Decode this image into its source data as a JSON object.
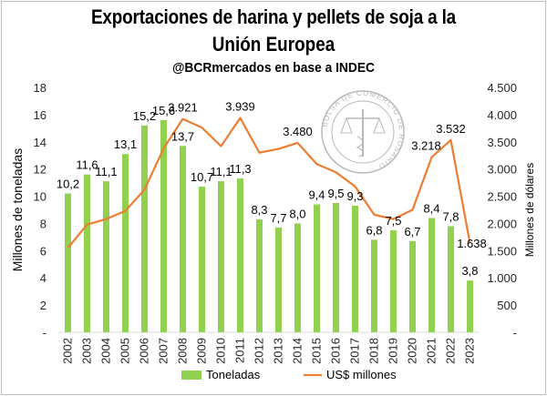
{
  "title_line1": "Exportaciones de harina y pellets de soja a la",
  "title_line2": "Unión Europea",
  "subtitle": "@BCRmercados en base a INDEC",
  "watermark": "BOLSA DE COMERCIO DE ROSARIO",
  "chart_data": {
    "type": "bar+line",
    "categories": [
      "2002",
      "2003",
      "2004",
      "2005",
      "2006",
      "2007",
      "2008",
      "2009",
      "2010",
      "2011",
      "2012",
      "2013",
      "2014",
      "2015",
      "2016",
      "2017",
      "2018",
      "2019",
      "2020",
      "2021",
      "2022",
      "2023"
    ],
    "series": [
      {
        "name": "Toneladas",
        "type": "bar",
        "axis": "left",
        "color": "#92d050",
        "values": [
          10.2,
          11.6,
          11.1,
          13.1,
          15.2,
          15.6,
          13.7,
          10.7,
          11.1,
          11.3,
          8.3,
          7.7,
          8.0,
          9.4,
          9.5,
          9.3,
          6.8,
          7.5,
          6.7,
          8.4,
          7.8,
          3.8
        ],
        "labels": [
          "10,2",
          "11,6",
          "11,1",
          "13,1",
          "15,2",
          "15,6",
          "13,7",
          "10,7",
          "11,1",
          "11,3",
          "8,3",
          "7,7",
          "8,0",
          "9,4",
          "9,5",
          "9,3",
          "6,8",
          "7,5",
          "6,7",
          "8,4",
          "7,8",
          "3,8"
        ]
      },
      {
        "name": "US$ millones",
        "type": "line",
        "axis": "right",
        "color": "#ed7d31",
        "values": [
          1550,
          1980,
          2080,
          2230,
          2620,
          3380,
          3921,
          3760,
          3420,
          3939,
          3300,
          3370,
          3480,
          3090,
          2940,
          2680,
          2160,
          2080,
          2250,
          3218,
          3532,
          1638
        ],
        "labels": [
          "",
          "",
          "",
          "",
          "",
          "",
          "3.921",
          "",
          "",
          "3.939",
          "",
          "",
          "3.480",
          "",
          "",
          "",
          "",
          "",
          "",
          "3.218",
          "3.532",
          "1.638"
        ]
      }
    ],
    "y_left": {
      "label": "Millones de toneladas",
      "min": 0,
      "max": 18,
      "ticks": [
        "-",
        "2",
        "4",
        "6",
        "8",
        "10",
        "12",
        "14",
        "16",
        "18"
      ]
    },
    "y_right": {
      "label": "Millones de dólares",
      "min": 0,
      "max": 4500,
      "ticks": [
        "-",
        "500",
        "1.000",
        "1.500",
        "2.000",
        "2.500",
        "3.000",
        "3.500",
        "4.000",
        "4.500"
      ]
    },
    "legend": {
      "position": "bottom",
      "items": [
        "Toneladas",
        "US$ millones"
      ]
    },
    "grid": false
  }
}
